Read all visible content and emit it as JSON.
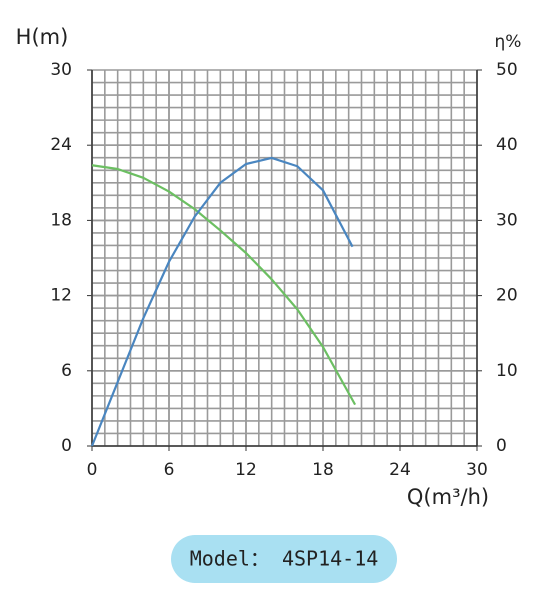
{
  "chart_data": {
    "type": "line",
    "y_label": "H(m)",
    "y2_label": "η%",
    "x_label": "Q(m³/h)",
    "annotation": "Model： 4SP14-14",
    "xlim": [
      0,
      30
    ],
    "xticks": [
      0,
      6,
      12,
      18,
      24,
      30
    ],
    "ylim": [
      0,
      30
    ],
    "yticks": [
      0,
      6,
      12,
      18,
      24,
      30
    ],
    "y2lim": [
      0,
      50
    ],
    "y2ticks": [
      0,
      10,
      20,
      30,
      40,
      50
    ],
    "grid": true,
    "series": [
      {
        "color": "#6cbf62",
        "x": [
          0,
          2,
          4,
          6,
          8,
          10,
          12,
          14,
          16,
          18,
          20.5
        ],
        "values": [
          22.4,
          22.1,
          21.4,
          20.3,
          18.9,
          17.2,
          15.4,
          13.3,
          10.9,
          7.9,
          3.3
        ]
      },
      {
        "color": "#4a86c0",
        "axis": "y2",
        "x": [
          0,
          2,
          4,
          6,
          8,
          10,
          12,
          14,
          16,
          18,
          20.3
        ],
        "values": [
          0,
          8.5,
          17,
          24.5,
          30.5,
          35,
          37.5,
          38.3,
          37.2,
          34,
          26.5
        ]
      }
    ]
  }
}
